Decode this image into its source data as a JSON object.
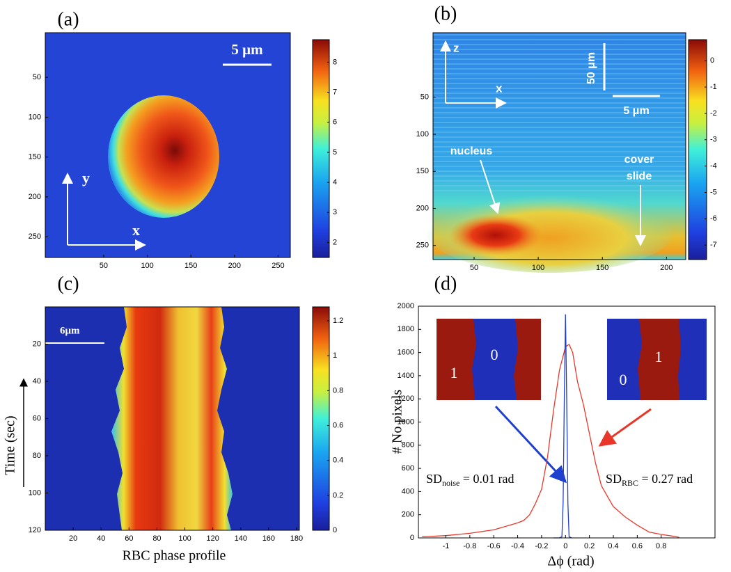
{
  "chart_data": [
    {
      "type": "heatmap",
      "panel_label": "(a)",
      "xlim": [
        -17,
        264
      ],
      "xticks": [
        50,
        100,
        150,
        200,
        250
      ],
      "ylim": [
        -6,
        276
      ],
      "yticks": [
        50,
        100,
        150,
        200,
        250
      ],
      "y_reversed": true,
      "colorbar": {
        "lim": [
          1.5,
          8.75
        ],
        "ticks": [
          2,
          3,
          4,
          5,
          6,
          7,
          8
        ]
      },
      "annotations": [
        "5 μm",
        "y",
        "x"
      ]
    },
    {
      "type": "heatmap",
      "panel_label": "(b)",
      "xlim": [
        18,
        215
      ],
      "xticks": [
        50,
        100,
        150,
        200
      ],
      "ylim": [
        -37,
        269
      ],
      "yticks": [
        50,
        100,
        150,
        200,
        250
      ],
      "y_reversed": true,
      "colorbar": {
        "lim": [
          -7.55,
          0.8
        ],
        "ticks": [
          0,
          -1,
          -2,
          -3,
          -4,
          -5,
          -6,
          -7
        ]
      },
      "annotations": [
        "z",
        "x",
        "50 μm",
        "5 μm",
        "nucleus",
        "cover",
        "slide"
      ]
    },
    {
      "type": "heatmap",
      "panel_label": "(c)",
      "xlabel": "RBC phase profile",
      "ylabel": "Time (sec)",
      "xlim": [
        0,
        182
      ],
      "xticks": [
        20,
        40,
        60,
        80,
        100,
        120,
        140,
        160,
        180
      ],
      "ylim": [
        0,
        120
      ],
      "yticks": [
        20,
        40,
        60,
        80,
        100,
        120
      ],
      "y_reversed": true,
      "colorbar": {
        "lim": [
          0,
          1.28
        ],
        "ticks": [
          0,
          0.2,
          0.4,
          0.6,
          0.8,
          1,
          1.2
        ]
      },
      "annotations": [
        "6μm"
      ]
    },
    {
      "type": "line",
      "panel_label": "(d)",
      "xlabel": "Δϕ (rad)",
      "ylabel": "# No pixels",
      "xlim": [
        -1.23,
        1.25
      ],
      "xticks": [
        -1,
        -0.8,
        -0.6,
        -0.4,
        -0.2,
        0,
        0.2,
        0.4,
        0.6,
        0.8
      ],
      "ylim": [
        0,
        2000
      ],
      "yticks": [
        0,
        200,
        400,
        600,
        800,
        1000,
        1200,
        1400,
        1600,
        1800,
        2000
      ],
      "series": [
        {
          "color": "#e8372a",
          "x": [
            -1.2,
            -1.0,
            -0.8,
            -0.6,
            -0.5,
            -0.4,
            -0.35,
            -0.3,
            -0.25,
            -0.2,
            -0.15,
            -0.1,
            -0.05,
            0,
            0.03,
            0.06,
            0.1,
            0.15,
            0.2,
            0.25,
            0.3,
            0.4,
            0.5,
            0.6,
            0.7,
            0.8,
            0.9,
            0.95
          ],
          "values": [
            10,
            20,
            40,
            70,
            100,
            130,
            150,
            200,
            300,
            420,
            700,
            1100,
            1450,
            1650,
            1670,
            1600,
            1350,
            1150,
            900,
            650,
            450,
            270,
            180,
            110,
            50,
            30,
            15,
            5
          ]
        },
        {
          "color": "#1f3fcf",
          "x": [
            -0.1,
            -0.05,
            -0.03,
            -0.02,
            -0.01,
            0,
            0.01,
            0.02,
            0.03,
            0.05
          ],
          "values": [
            0,
            0,
            10,
            300,
            1200,
            1930,
            1200,
            300,
            10,
            0
          ]
        }
      ],
      "annotations": [
        {
          "text": "SD",
          "sub": "noise",
          "rest": " = 0.01 rad"
        },
        {
          "text": "SD",
          "sub": "RBC",
          "rest": " = 0.27 rad"
        }
      ],
      "inset_labels": [
        "1",
        "0",
        "0",
        "1"
      ]
    }
  ]
}
